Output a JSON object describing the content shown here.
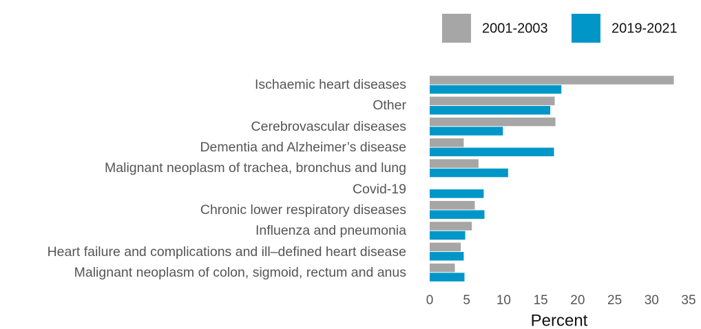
{
  "chart_data": {
    "type": "bar",
    "orientation": "horizontal",
    "x_label": "Percent",
    "categories": [
      "Ischaemic heart diseases",
      "Other",
      "Cerebrovascular diseases",
      "Dementia and Alzheimer’s disease",
      "Malignant neoplasm of trachea, bronchus and lung",
      "Covid-19",
      "Chronic lower respiratory diseases",
      "Influenza and pneumonia",
      "Heart failure and complications and ill–defined heart disease",
      "Malignant neoplasm of colon, sigmoid, rectum and anus"
    ],
    "series": [
      {
        "name": "2001-2003",
        "color": "#a6a6a6",
        "values": [
          33.0,
          16.9,
          17.0,
          4.6,
          6.6,
          null,
          6.1,
          5.7,
          4.2,
          3.4
        ]
      },
      {
        "name": "2019-2021",
        "color": "#0096c8",
        "values": [
          17.8,
          16.3,
          9.9,
          16.8,
          10.6,
          7.3,
          7.4,
          4.8,
          4.6,
          4.7
        ]
      }
    ],
    "xlim": [
      0,
      35
    ],
    "xticks": [
      0,
      5,
      10,
      15,
      20,
      25,
      30,
      35
    ],
    "legend": "top-right",
    "grid": false
  }
}
